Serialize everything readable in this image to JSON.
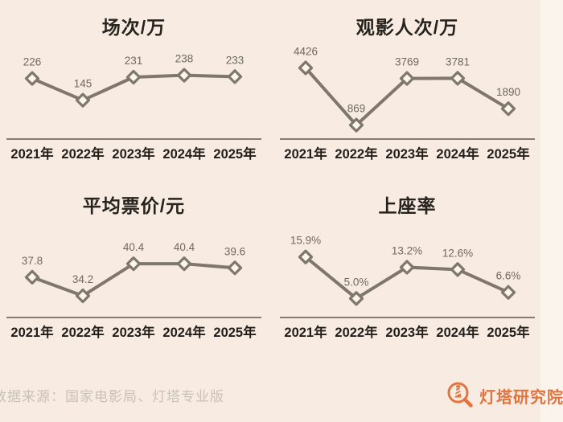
{
  "page": {
    "background_color": "#f8ece2",
    "right_strip_color": "#fbf4ec"
  },
  "style": {
    "line_color": "#7f776b",
    "marker_fill": "#fbf5ec",
    "axis_color": "#857d71",
    "title_color": "#26221e",
    "tick_color": "#211d1a",
    "data_label_color": "#6f6860",
    "source_color": "#c8c1b8",
    "brand_color": "#e2743f"
  },
  "footer": {
    "source_text": "数据来源：国家电影局、灯塔专业版",
    "brand_name": "灯塔研究院"
  },
  "chart_data": [
    {
      "type": "line",
      "title": "场次/万",
      "categories": [
        "2021年",
        "2022年",
        "2023年",
        "2024年",
        "2025年"
      ],
      "values": [
        226,
        145,
        231,
        238,
        233
      ],
      "labels": [
        "226",
        "145",
        "231",
        "238",
        "233"
      ],
      "ylim": [
        0,
        270
      ],
      "grid": false,
      "legend": "none",
      "marker": "diamond-open"
    },
    {
      "type": "line",
      "title": "观影人次/万",
      "categories": [
        "2021年",
        "2022年",
        "2023年",
        "2024年",
        "2025年"
      ],
      "values": [
        4426,
        869,
        3769,
        3781,
        1890
      ],
      "labels": [
        "4426",
        "869",
        "3769",
        "3781",
        "1890"
      ],
      "ylim": [
        0,
        4500
      ],
      "grid": false,
      "legend": "none",
      "marker": "diamond-open"
    },
    {
      "type": "line",
      "title": "平均票价/元",
      "categories": [
        "2021年",
        "2022年",
        "2023年",
        "2024年",
        "2025年"
      ],
      "values": [
        37.8,
        34.2,
        40.4,
        40.4,
        39.6
      ],
      "labels": [
        "37.8",
        "34.2",
        "40.4",
        "40.4",
        "39.6"
      ],
      "ylim": [
        30,
        44
      ],
      "grid": false,
      "legend": "none",
      "marker": "diamond-open"
    },
    {
      "type": "line",
      "title": "上座率",
      "categories": [
        "2021年",
        "2022年",
        "2023年",
        "2024年",
        "2025年"
      ],
      "values": [
        15.9,
        5.0,
        13.2,
        12.6,
        6.6
      ],
      "labels": [
        "15.9%",
        "5.0%",
        "13.2%",
        "12.6%",
        "6.6%"
      ],
      "ylim": [
        0,
        19
      ],
      "grid": false,
      "legend": "none",
      "marker": "diamond-open"
    }
  ]
}
